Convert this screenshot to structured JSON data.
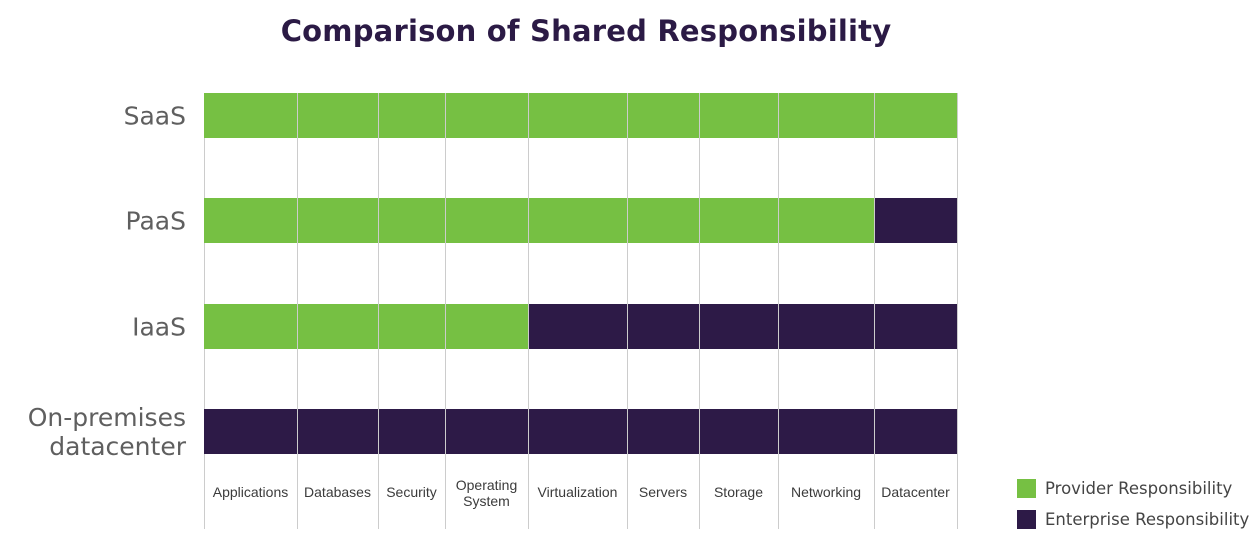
{
  "chart_data": {
    "type": "table",
    "title": "Comparison of Shared Responsibility",
    "rows": [
      "SaaS",
      "PaaS",
      "IaaS",
      "On-premises datacenter"
    ],
    "row_label_lines": [
      [
        "SaaS"
      ],
      [
        "PaaS"
      ],
      [
        "IaaS"
      ],
      [
        "On-premises",
        "datacenter"
      ]
    ],
    "columns": [
      "Applications",
      "Databases",
      "Security",
      "Operating System",
      "Virtualization",
      "Servers",
      "Storage",
      "Networking",
      "Datacenter"
    ],
    "column_label_lines": [
      [
        "Applications"
      ],
      [
        "Databases"
      ],
      [
        "Security"
      ],
      [
        "Operating",
        "System"
      ],
      [
        "Virtualization"
      ],
      [
        "Servers"
      ],
      [
        "Storage"
      ],
      [
        "Networking"
      ],
      [
        "Datacenter"
      ]
    ],
    "cells": [
      [
        "Provider",
        "Provider",
        "Provider",
        "Provider",
        "Provider",
        "Provider",
        "Provider",
        "Provider",
        "Provider"
      ],
      [
        "Provider",
        "Provider",
        "Provider",
        "Provider",
        "Provider",
        "Provider",
        "Provider",
        "Provider",
        "Enterprise"
      ],
      [
        "Provider",
        "Provider",
        "Provider",
        "Provider",
        "Enterprise",
        "Enterprise",
        "Enterprise",
        "Enterprise",
        "Enterprise"
      ],
      [
        "Enterprise",
        "Enterprise",
        "Enterprise",
        "Enterprise",
        "Enterprise",
        "Enterprise",
        "Enterprise",
        "Enterprise",
        "Enterprise"
      ]
    ],
    "legend": {
      "placement": "bottom-right",
      "items": [
        {
          "key": "Provider",
          "label": "Provider Responsibility",
          "color": "#76c043"
        },
        {
          "key": "Enterprise",
          "label": "Enterprise Responsibility",
          "color": "#2d1a47"
        }
      ]
    },
    "grid": true,
    "grid_color": "#cccccc",
    "title_color": "#2b1a45",
    "row_label_color": "#5f5f5f"
  }
}
